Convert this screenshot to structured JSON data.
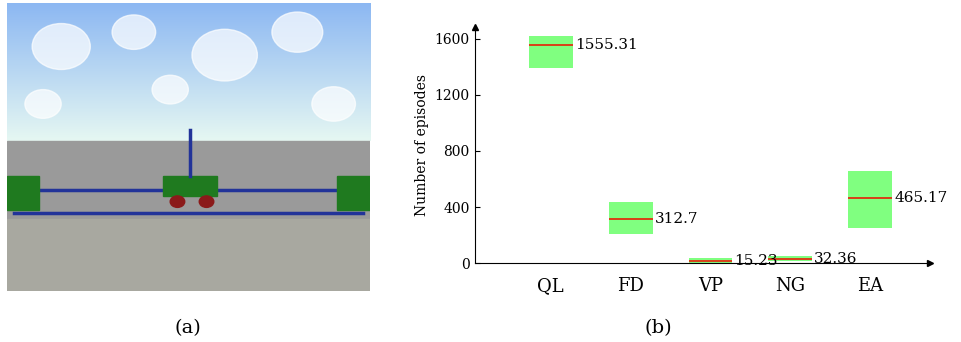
{
  "image_panel": {
    "caption": "(a)"
  },
  "chart_data": {
    "type": "box",
    "caption": "(b)",
    "y_label": "Number of episodes",
    "categories": [
      "QL",
      "FD",
      "VP",
      "NG",
      "EA"
    ],
    "values": [
      1555.31,
      312.7,
      15.23,
      32.36,
      465.17
    ],
    "low": [
      1390,
      210,
      5,
      20,
      255
    ],
    "high": [
      1615,
      440,
      35,
      55,
      660
    ],
    "color": "#80ff80",
    "median_color": "#e03010",
    "ylim": [
      0,
      1680
    ],
    "yticks": [
      0,
      400,
      800,
      1200,
      1600
    ],
    "grid": false,
    "data_labels": true
  }
}
